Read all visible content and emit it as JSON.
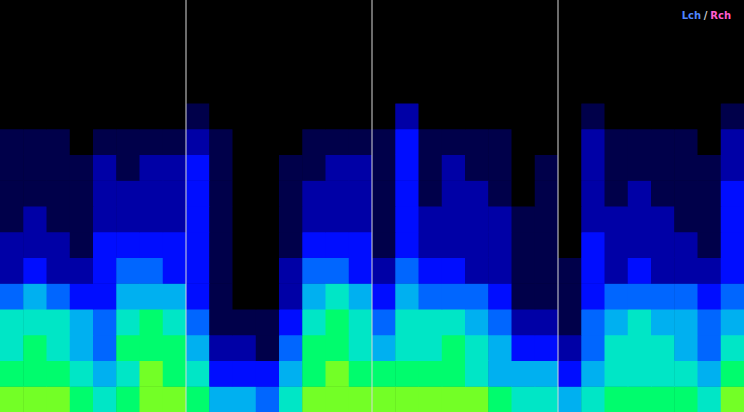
{
  "chart_data": {
    "type": "heatmap",
    "channels": [
      {
        "name": "Lch",
        "color": "#4f86ff"
      },
      {
        "name": "Rch",
        "color": "#ff5ccf"
      }
    ],
    "separator": "/",
    "xlim": [
      0,
      32
    ],
    "ylim": [
      0,
      16
    ],
    "zlim": [
      0,
      10
    ],
    "markers": [
      8,
      16,
      24
    ],
    "grid": false,
    "tick_labels": false,
    "z": [
      [
        8,
        8,
        8,
        7,
        6,
        7,
        8,
        8,
        7,
        5,
        5,
        4,
        6,
        8,
        8,
        8,
        8,
        8,
        8,
        8,
        8,
        7,
        6,
        6,
        5,
        6,
        7,
        7,
        7,
        7,
        6,
        8
      ],
      [
        7,
        7,
        7,
        6,
        5,
        6,
        8,
        7,
        6,
        3,
        3,
        3,
        5,
        7,
        8,
        7,
        7,
        7,
        7,
        7,
        6,
        5,
        5,
        5,
        3,
        5,
        6,
        6,
        6,
        6,
        5,
        7
      ],
      [
        6,
        7,
        6,
        5,
        4,
        7,
        7,
        7,
        5,
        2,
        2,
        1,
        4,
        7,
        7,
        6,
        5,
        6,
        6,
        7,
        6,
        5,
        3,
        3,
        2,
        4,
        6,
        6,
        6,
        5,
        4,
        6
      ],
      [
        6,
        6,
        6,
        5,
        4,
        6,
        7,
        6,
        4,
        1,
        1,
        1,
        3,
        6,
        7,
        6,
        4,
        6,
        6,
        6,
        5,
        4,
        2,
        2,
        1,
        4,
        5,
        6,
        5,
        5,
        4,
        5
      ],
      [
        4,
        5,
        4,
        3,
        3,
        5,
        5,
        5,
        3,
        1,
        0,
        0,
        2,
        5,
        6,
        5,
        3,
        5,
        4,
        4,
        4,
        3,
        1,
        1,
        1,
        3,
        4,
        4,
        4,
        4,
        3,
        4
      ],
      [
        2,
        3,
        2,
        2,
        3,
        4,
        4,
        3,
        3,
        1,
        0,
        0,
        2,
        4,
        4,
        3,
        2,
        4,
        3,
        3,
        2,
        2,
        1,
        1,
        1,
        3,
        2,
        3,
        2,
        2,
        2,
        3
      ],
      [
        2,
        2,
        2,
        1,
        3,
        3,
        3,
        3,
        3,
        1,
        0,
        0,
        1,
        3,
        3,
        3,
        1,
        3,
        2,
        2,
        2,
        2,
        1,
        1,
        0,
        3,
        2,
        2,
        2,
        2,
        1,
        3
      ],
      [
        1,
        2,
        1,
        1,
        2,
        2,
        2,
        2,
        3,
        1,
        0,
        0,
        1,
        2,
        2,
        2,
        1,
        3,
        2,
        2,
        2,
        2,
        1,
        1,
        0,
        2,
        2,
        2,
        2,
        1,
        1,
        3
      ],
      [
        1,
        1,
        1,
        1,
        2,
        2,
        2,
        2,
        3,
        1,
        0,
        0,
        1,
        2,
        2,
        2,
        1,
        3,
        1,
        2,
        2,
        1,
        0,
        1,
        0,
        2,
        1,
        2,
        1,
        1,
        1,
        3
      ],
      [
        1,
        1,
        1,
        1,
        2,
        1,
        2,
        2,
        3,
        1,
        0,
        0,
        1,
        1,
        2,
        2,
        1,
        3,
        1,
        2,
        1,
        1,
        0,
        1,
        0,
        2,
        1,
        1,
        1,
        1,
        1,
        2
      ],
      [
        1,
        1,
        1,
        0,
        1,
        1,
        1,
        1,
        2,
        1,
        0,
        0,
        0,
        1,
        1,
        1,
        1,
        3,
        1,
        1,
        1,
        1,
        0,
        0,
        0,
        2,
        1,
        1,
        1,
        1,
        0,
        2
      ],
      [
        0,
        0,
        0,
        0,
        0,
        0,
        0,
        0,
        1,
        0,
        0,
        0,
        0,
        0,
        0,
        0,
        0,
        2,
        0,
        0,
        0,
        0,
        0,
        0,
        0,
        1,
        0,
        0,
        0,
        0,
        0,
        1
      ],
      [
        0,
        0,
        0,
        0,
        0,
        0,
        0,
        0,
        0,
        0,
        0,
        0,
        0,
        0,
        0,
        0,
        0,
        0,
        0,
        0,
        0,
        0,
        0,
        0,
        0,
        0,
        0,
        0,
        0,
        0,
        0,
        0
      ],
      [
        0,
        0,
        0,
        0,
        0,
        0,
        0,
        0,
        0,
        0,
        0,
        0,
        0,
        0,
        0,
        0,
        0,
        0,
        0,
        0,
        0,
        0,
        0,
        0,
        0,
        0,
        0,
        0,
        0,
        0,
        0,
        0
      ],
      [
        0,
        0,
        0,
        0,
        0,
        0,
        0,
        0,
        0,
        0,
        0,
        0,
        0,
        0,
        0,
        0,
        0,
        0,
        0,
        0,
        0,
        0,
        0,
        0,
        0,
        0,
        0,
        0,
        0,
        0,
        0,
        0
      ],
      [
        0,
        0,
        0,
        0,
        0,
        0,
        0,
        0,
        0,
        0,
        0,
        0,
        0,
        0,
        0,
        0,
        0,
        0,
        0,
        0,
        0,
        0,
        0,
        0,
        0,
        0,
        0,
        0,
        0,
        0,
        0,
        0
      ]
    ]
  }
}
